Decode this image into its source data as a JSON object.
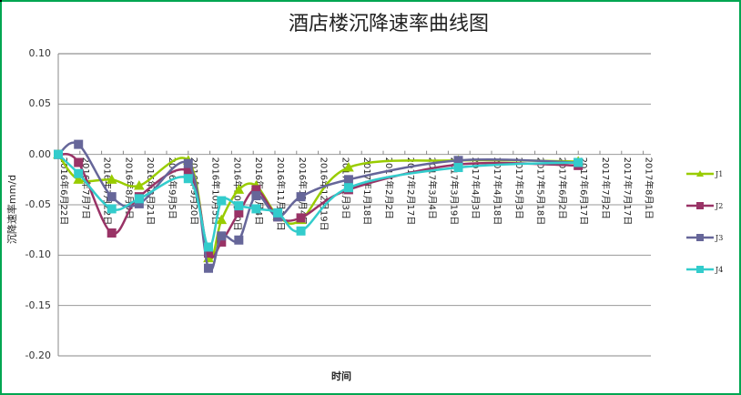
{
  "chart_data": {
    "type": "line",
    "title": "酒店楼沉降速率曲线图",
    "xlabel": "时间",
    "ylabel": "沉降速率mm/d",
    "ylim": [
      -0.2,
      0.1
    ],
    "yticks": [
      "0.10",
      "0.05",
      "0.00",
      "-0.05",
      "-0.10",
      "-0.15",
      "-0.20"
    ],
    "grid": "horizontal",
    "legend_position": "right",
    "categories": [
      "2016年6月22日",
      "2016年7月7日",
      "2016年7月22日",
      "2016年8月6日",
      "2016年8月21日",
      "2016年9月5日",
      "2016年9月20日",
      "2016年10月5日",
      "2016年10月20日",
      "2016年11月4日",
      "2016年11月19日",
      "2016年12月4日",
      "2016年12月19日",
      "2017年1月3日",
      "2017年1月18日",
      "2017年2月2日",
      "2017年2月17日",
      "2017年3月4日",
      "2017年3月19日",
      "2017年4月3日",
      "2017年4月18日",
      "2017年5月3日",
      "2017年5月18日",
      "2017年6月2日",
      "2017年6月17日",
      "2017年7月2日",
      "2017年7月17日",
      "2017年8月1日"
    ],
    "x_days": [
      0,
      14,
      37,
      56,
      90,
      104,
      113,
      125,
      137,
      152,
      168,
      201,
      277,
      360
    ],
    "series": [
      {
        "name": "J1",
        "color": "#99CC00",
        "marker": "triangle",
        "values": [
          0.0,
          -0.025,
          -0.025,
          -0.031,
          -0.006,
          -0.103,
          -0.065,
          -0.035,
          -0.031,
          -0.061,
          -0.065,
          -0.013,
          -0.006,
          -0.007
        ]
      },
      {
        "name": "J2",
        "color": "#993366",
        "marker": "square",
        "values": [
          0.0,
          -0.008,
          -0.078,
          -0.042,
          -0.017,
          -0.098,
          -0.087,
          -0.058,
          -0.035,
          -0.062,
          -0.063,
          -0.035,
          -0.01,
          -0.011
        ]
      },
      {
        "name": "J3",
        "color": "#666699",
        "marker": "square",
        "values": [
          0.0,
          0.01,
          -0.042,
          -0.049,
          -0.009,
          -0.113,
          -0.081,
          -0.085,
          -0.041,
          -0.062,
          -0.042,
          -0.025,
          -0.006,
          -0.008
        ]
      },
      {
        "name": "J4",
        "color": "#33CCCC",
        "marker": "square",
        "values": [
          0.0,
          -0.019,
          -0.054,
          -0.044,
          -0.024,
          -0.092,
          -0.046,
          -0.051,
          -0.054,
          -0.058,
          -0.076,
          -0.033,
          -0.013,
          -0.008
        ]
      }
    ]
  }
}
